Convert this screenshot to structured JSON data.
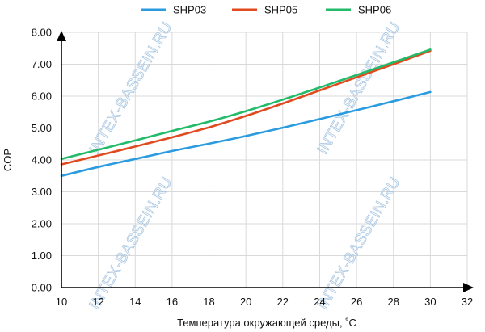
{
  "chart_data": {
    "type": "line",
    "xlabel": "Температура окружающей среды, ˚С",
    "ylabel": "COP",
    "xlim": [
      10,
      32
    ],
    "ylim": [
      0,
      8
    ],
    "x_ticks": [
      "10",
      "12",
      "14",
      "16",
      "18",
      "20",
      "22",
      "24",
      "26",
      "28",
      "30",
      "32"
    ],
    "y_ticks": [
      "0.00",
      "1.00",
      "2.00",
      "3.00",
      "4.00",
      "5.00",
      "6.00",
      "7.00",
      "8.00"
    ],
    "grid": true,
    "legend_position": "top",
    "x": [
      10,
      12,
      14,
      16,
      18,
      20,
      22,
      24,
      26,
      28,
      30
    ],
    "series": [
      {
        "name": "SHP03",
        "color": "#2b9be0",
        "values": [
          3.5,
          3.78,
          4.03,
          4.28,
          4.51,
          4.75,
          5.01,
          5.28,
          5.56,
          5.84,
          6.13
        ]
      },
      {
        "name": "SHP05",
        "color": "#e04a1f",
        "values": [
          3.86,
          4.14,
          4.42,
          4.71,
          5.02,
          5.38,
          5.77,
          6.18,
          6.59,
          7.0,
          7.42
        ]
      },
      {
        "name": "SHP06",
        "color": "#22bb6a",
        "values": [
          4.03,
          4.32,
          4.61,
          4.91,
          5.2,
          5.53,
          5.89,
          6.27,
          6.66,
          7.06,
          7.46
        ]
      }
    ]
  },
  "watermark": "INTEX-BASSEIN.RU"
}
